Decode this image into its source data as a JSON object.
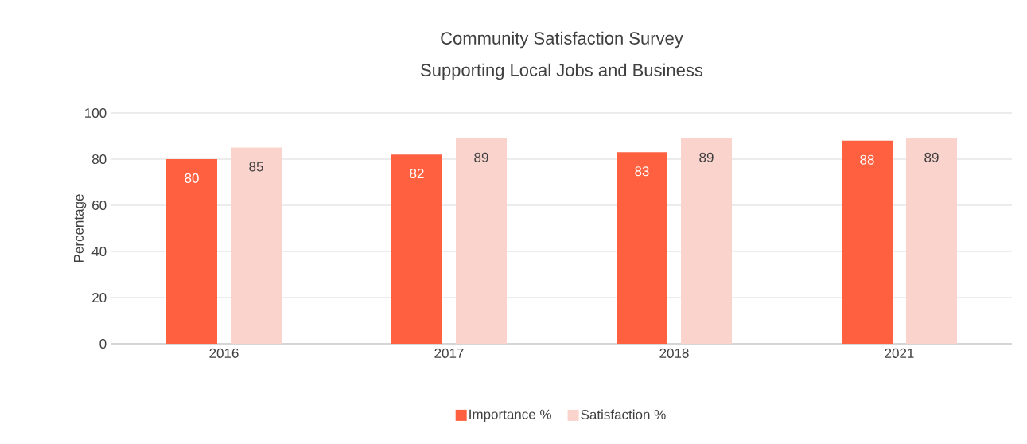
{
  "chart_data": {
    "type": "bar",
    "title": "Community Satisfaction Survey",
    "subtitle": "Supporting Local Jobs and Business",
    "ylabel": "Percentage",
    "categories": [
      "2016",
      "2017",
      "2018",
      "2021"
    ],
    "series": [
      {
        "name": "Importance %",
        "color": "#ff6140",
        "values": [
          80,
          82,
          83,
          88
        ]
      },
      {
        "name": "Satisfaction %",
        "color": "#fbd3cd",
        "values": [
          85,
          89,
          89,
          89
        ]
      }
    ],
    "ylim": [
      0,
      100
    ],
    "yticks": [
      0,
      20,
      40,
      60,
      80,
      100
    ],
    "grid": "y",
    "legend": "bottom",
    "data_labels": true
  }
}
